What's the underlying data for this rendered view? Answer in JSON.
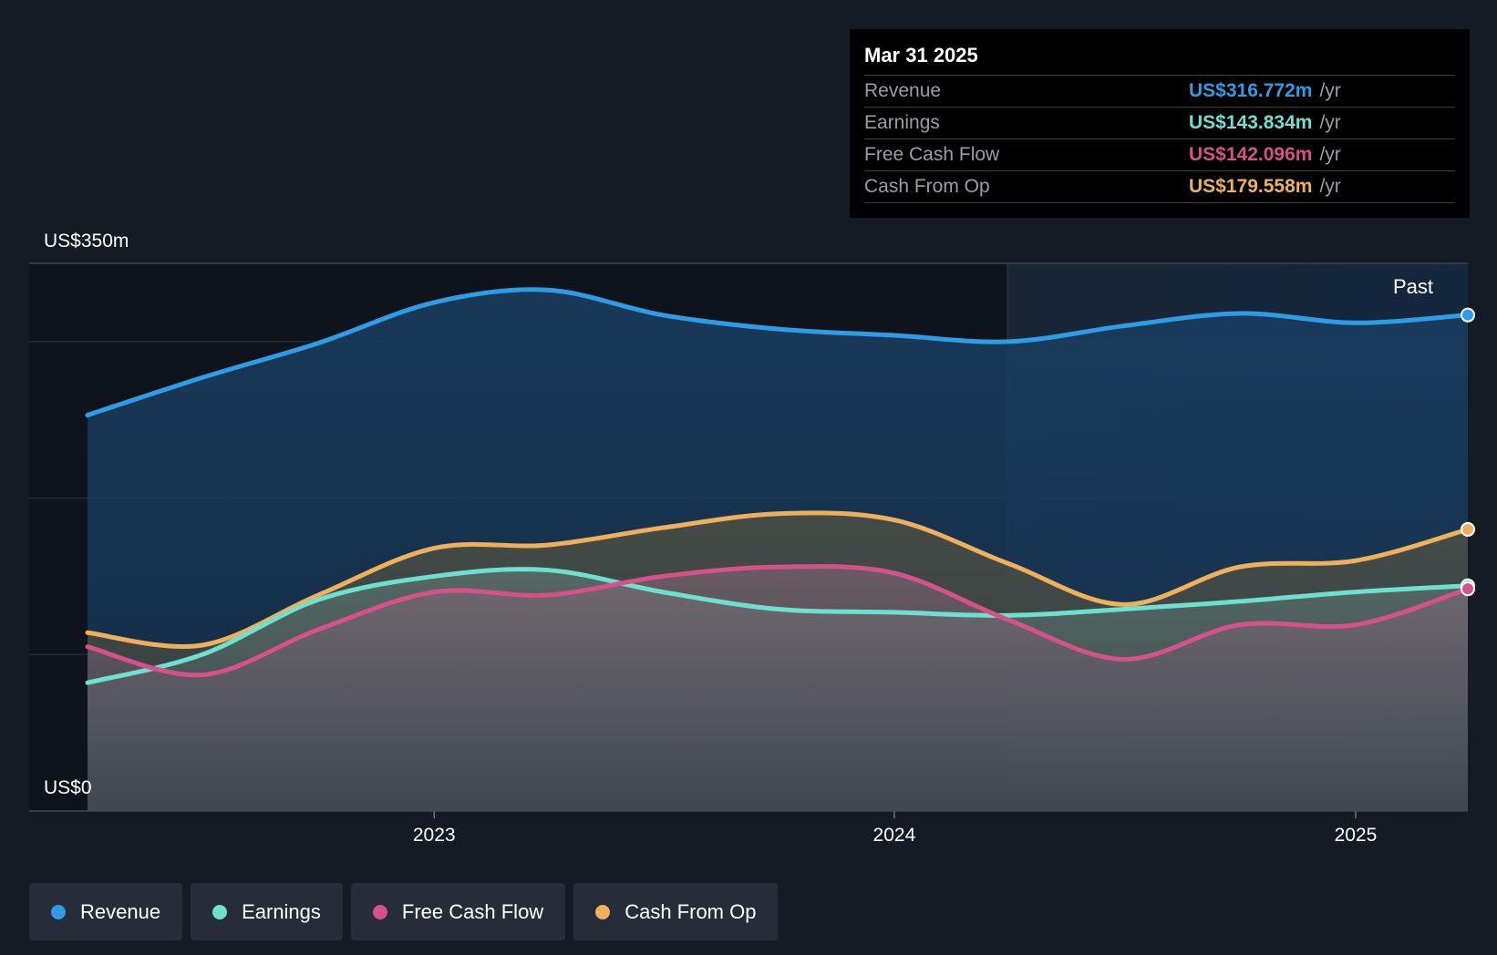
{
  "tooltip": {
    "date": "Mar 31 2025",
    "rows": [
      {
        "label": "Revenue",
        "value": "US$316.772m",
        "unit": "/yr",
        "color": "#2e9de6"
      },
      {
        "label": "Earnings",
        "value": "US$143.834m",
        "unit": "/yr",
        "color": "#6de0cf"
      },
      {
        "label": "Free Cash Flow",
        "value": "US$142.096m",
        "unit": "/yr",
        "color": "#d6508a"
      },
      {
        "label": "Cash From Op",
        "value": "US$179.558m",
        "unit": "/yr",
        "color": "#efb05c"
      }
    ]
  },
  "legend": [
    {
      "label": "Revenue",
      "color": "#2e9de6"
    },
    {
      "label": "Earnings",
      "color": "#6de0cf"
    },
    {
      "label": "Free Cash Flow",
      "color": "#d6508a"
    },
    {
      "label": "Cash From Op",
      "color": "#efb05c"
    }
  ],
  "chart_data": {
    "type": "area",
    "y_top_label": "US$350m",
    "y_bottom_label": "US$0",
    "past_label": "Past",
    "ylim": [
      0,
      350
    ],
    "xlim": [
      "2022-04-01",
      "2025-03-31"
    ],
    "x_ticks": [
      {
        "label": "2023",
        "date": "2023-01-01"
      },
      {
        "label": "2024",
        "date": "2024-01-01"
      },
      {
        "label": "2025",
        "date": "2025-01-01"
      }
    ],
    "past_start": "2024-03-31",
    "grid": true,
    "series": [
      {
        "name": "Revenue",
        "color": "#2e9de6",
        "points": [
          [
            "2022-04-01",
            253
          ],
          [
            "2022-07-01",
            277
          ],
          [
            "2022-10-01",
            299
          ],
          [
            "2023-01-01",
            325
          ],
          [
            "2023-04-01",
            333
          ],
          [
            "2023-07-01",
            317
          ],
          [
            "2023-10-01",
            308
          ],
          [
            "2024-01-01",
            304
          ],
          [
            "2024-04-01",
            300
          ],
          [
            "2024-07-01",
            310
          ],
          [
            "2024-10-01",
            318
          ],
          [
            "2025-01-01",
            312
          ],
          [
            "2025-03-31",
            317
          ]
        ]
      },
      {
        "name": "Cash From Op",
        "color": "#efb05c",
        "points": [
          [
            "2022-04-01",
            114
          ],
          [
            "2022-07-01",
            106
          ],
          [
            "2022-10-01",
            138
          ],
          [
            "2023-01-01",
            168
          ],
          [
            "2023-04-01",
            170
          ],
          [
            "2023-07-01",
            181
          ],
          [
            "2023-10-01",
            190
          ],
          [
            "2024-01-01",
            186
          ],
          [
            "2024-04-01",
            158
          ],
          [
            "2024-07-01",
            132
          ],
          [
            "2024-10-01",
            156
          ],
          [
            "2025-01-01",
            160
          ],
          [
            "2025-03-31",
            180
          ]
        ]
      },
      {
        "name": "Earnings",
        "color": "#6de0cf",
        "points": [
          [
            "2022-04-01",
            82
          ],
          [
            "2022-07-01",
            100
          ],
          [
            "2022-10-01",
            135
          ],
          [
            "2023-01-01",
            150
          ],
          [
            "2023-04-01",
            154
          ],
          [
            "2023-07-01",
            140
          ],
          [
            "2023-10-01",
            129
          ],
          [
            "2024-01-01",
            127
          ],
          [
            "2024-04-01",
            125
          ],
          [
            "2024-07-01",
            129
          ],
          [
            "2024-10-01",
            134
          ],
          [
            "2025-01-01",
            140
          ],
          [
            "2025-03-31",
            144
          ]
        ]
      },
      {
        "name": "Free Cash Flow",
        "color": "#d6508a",
        "points": [
          [
            "2022-04-01",
            105
          ],
          [
            "2022-07-01",
            87
          ],
          [
            "2022-10-01",
            116
          ],
          [
            "2023-01-01",
            140
          ],
          [
            "2023-04-01",
            138
          ],
          [
            "2023-07-01",
            150
          ],
          [
            "2023-10-01",
            156
          ],
          [
            "2024-01-01",
            152
          ],
          [
            "2024-04-01",
            122
          ],
          [
            "2024-07-01",
            97
          ],
          [
            "2024-10-01",
            119
          ],
          [
            "2025-01-01",
            119
          ],
          [
            "2025-03-31",
            142
          ]
        ]
      }
    ]
  }
}
